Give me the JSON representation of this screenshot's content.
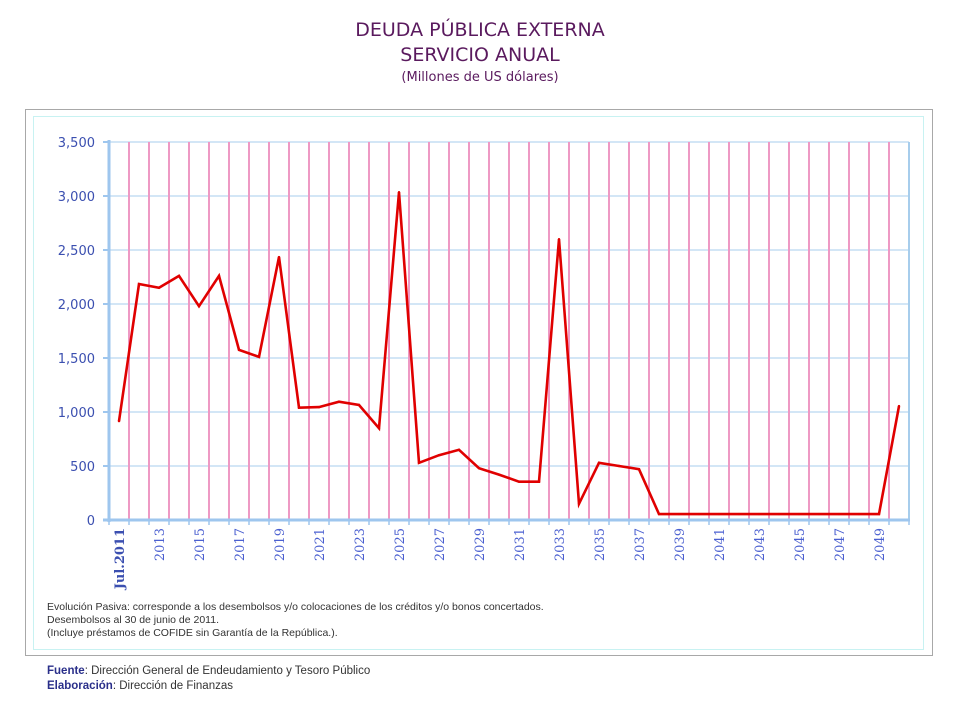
{
  "header": {
    "title": "DEUDA PÚBLICA EXTERNA",
    "subtitle": "SERVICIO ANUAL",
    "units": "(Millones de US dólares)"
  },
  "colors": {
    "title": "#5a1a5e",
    "line": "#e00000",
    "vgrid": "#ee99c4",
    "hgrid": "#a7cdec",
    "axis": "#9ec6ee",
    "ticklabel": "#3b4fb0"
  },
  "chart_data": {
    "type": "line",
    "title": "DEUDA PÚBLICA EXTERNA SERVICIO ANUAL",
    "subtitle": "(Millones de US dólares)",
    "xlabel": "",
    "ylabel": "",
    "ylim": [
      0,
      3500
    ],
    "yticks": [
      0,
      500,
      1000,
      1500,
      2000,
      2500,
      3000,
      3500
    ],
    "ytick_labels": [
      "0",
      "500",
      "1,000",
      "1,500",
      "2,000",
      "2,500",
      "3,000",
      "3,500"
    ],
    "grid": true,
    "legend": "none",
    "categories": [
      "Jul.2011",
      "2012",
      "2013",
      "2014",
      "2015",
      "2016",
      "2017",
      "2018",
      "2019",
      "2020",
      "2021",
      "2022",
      "2023",
      "2024",
      "2025",
      "2026",
      "2027",
      "2028",
      "2029",
      "2030",
      "2031",
      "2032",
      "2033",
      "2034",
      "2035",
      "2036",
      "2037",
      "2038",
      "2039",
      "2040",
      "2041",
      "2042",
      "2043",
      "2044",
      "2045",
      "2046",
      "2047",
      "2048",
      "2049",
      "2050"
    ],
    "xtick_labels": [
      "Jul.2011",
      "",
      "2013",
      "",
      "2015",
      "",
      "2017",
      "",
      "2019",
      "",
      "2021",
      "",
      "2023",
      "",
      "2025",
      "",
      "2027",
      "",
      "2029",
      "",
      "2031",
      "",
      "2033",
      "",
      "2035",
      "",
      "2037",
      "",
      "2039",
      "",
      "2041",
      "",
      "2043",
      "",
      "2045",
      "",
      "2047",
      "",
      "2049",
      ""
    ],
    "series": [
      {
        "name": "Servicio anual",
        "values": [
          915,
          2185,
          2150,
          2260,
          1980,
          2260,
          1575,
          1510,
          2435,
          1040,
          1045,
          1095,
          1065,
          850,
          3035,
          530,
          600,
          650,
          480,
          420,
          355,
          355,
          2600,
          150,
          530,
          500,
          470,
          55,
          55,
          55,
          55,
          55,
          55,
          55,
          55,
          55,
          55,
          55,
          55,
          1055
        ]
      }
    ]
  },
  "notes": [
    "Evolución Pasiva: corresponde a los desembolsos y/o colocaciones de los créditos y/o bonos concertados.",
    "Desembolsos al 30 de junio de 2011.",
    "(Incluye préstamos de COFIDE sin Garantía de la República.)."
  ],
  "source": {
    "fuente_label": "Fuente",
    "fuente_text": ": Dirección General de Endeudamiento y Tesoro Público",
    "elaboracion_label": "Elaboración",
    "elaboracion_text": ":  Dirección de Finanzas"
  }
}
